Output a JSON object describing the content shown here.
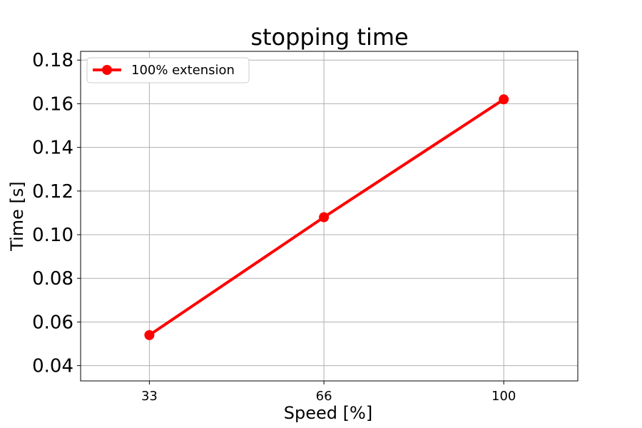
{
  "chart_data": {
    "type": "line",
    "title": "stopping time",
    "xlabel": "Speed [%]",
    "ylabel": "Time [s]",
    "x": [
      33,
      66,
      100
    ],
    "xlim": [
      20,
      114
    ],
    "ylim": [
      0.033,
      0.184
    ],
    "xticks": [
      "33",
      "66",
      "100"
    ],
    "yticks": [
      "0.04",
      "0.06",
      "0.08",
      "0.10",
      "0.12",
      "0.14",
      "0.16",
      "0.18"
    ],
    "grid": true,
    "legend_position": "top-left",
    "series": [
      {
        "name": "100% extension",
        "color": "#ff0000",
        "marker": "circle",
        "values": [
          0.054,
          0.108,
          0.162
        ]
      }
    ]
  }
}
